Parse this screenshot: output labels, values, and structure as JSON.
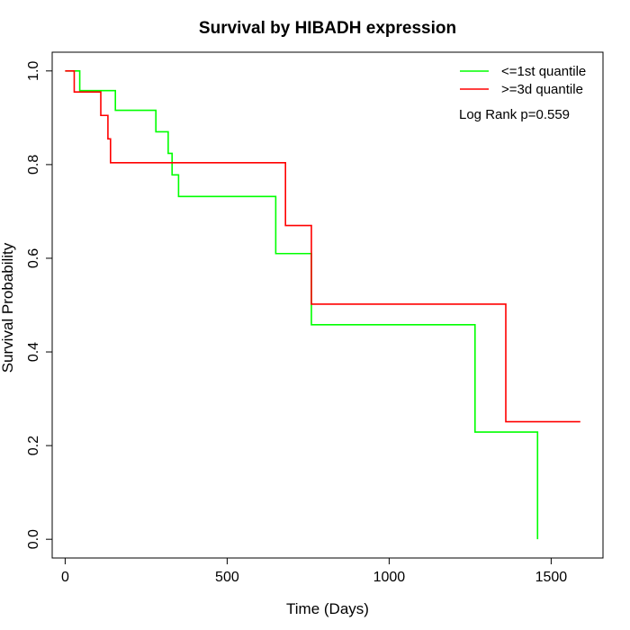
{
  "chart_data": {
    "type": "line",
    "title": "Survival by HIBADH expression",
    "xlabel": "Time (Days)",
    "ylabel": "Survival Probability",
    "xlim": [
      -40,
      1660
    ],
    "ylim": [
      -0.04,
      1.04
    ],
    "x_ticks": [
      0,
      500,
      1000,
      1500
    ],
    "y_ticks": [
      0.0,
      0.2,
      0.4,
      0.6,
      0.8,
      1.0
    ],
    "x_tick_labels": [
      "0",
      "500",
      "1000",
      "1500"
    ],
    "y_tick_labels": [
      "0.0",
      "0.2",
      "0.4",
      "0.6",
      "0.8",
      "1.0"
    ],
    "grid": false,
    "legend_position": "top-right",
    "annotation": "Log Rank p=0.559",
    "series": [
      {
        "name": "<=1st quantile",
        "color": "#00ff00",
        "step": true,
        "x": [
          0,
          45,
          155,
          280,
          318,
          330,
          350,
          650,
          760,
          1265,
          1458,
          1458
        ],
        "y": [
          1.0,
          0.958,
          0.916,
          0.87,
          0.824,
          0.778,
          0.732,
          0.61,
          0.458,
          0.229,
          0.229,
          0.0
        ]
      },
      {
        "name": ">=3d quantile",
        "color": "#ff0000",
        "step": true,
        "x": [
          0,
          28,
          110,
          132,
          140,
          680,
          760,
          1360,
          1590
        ],
        "y": [
          1.0,
          0.955,
          0.905,
          0.855,
          0.804,
          0.67,
          0.502,
          0.251,
          0.251
        ]
      }
    ]
  }
}
